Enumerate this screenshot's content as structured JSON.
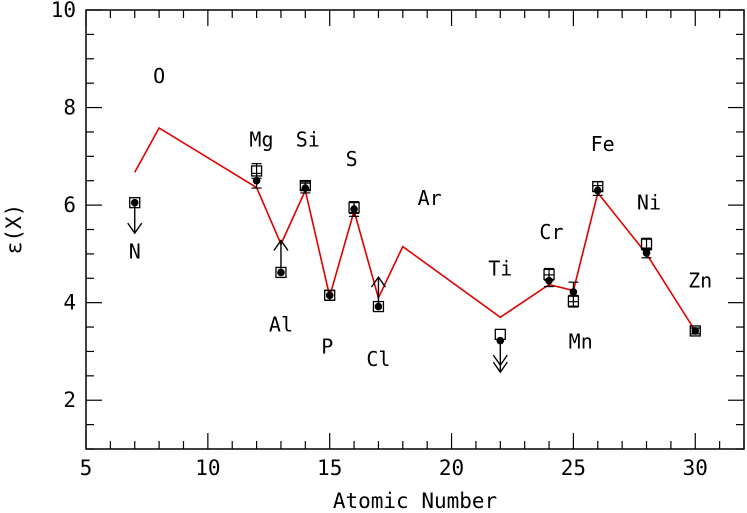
{
  "chart_data": {
    "type": "scatter",
    "xlabel": "Atomic Number",
    "ylabel": "ε(X)",
    "xlim": [
      5,
      32
    ],
    "ylim": [
      1,
      10
    ],
    "x_ticks": [
      5,
      10,
      15,
      20,
      25,
      30
    ],
    "y_ticks": [
      2,
      4,
      6,
      8,
      10
    ],
    "grid": false,
    "colors": {
      "model_line": "#e00000",
      "points": "#000000"
    },
    "series": [
      {
        "type": "line",
        "points": [
          {
            "x": 7,
            "y": 6.67
          },
          {
            "x": 8,
            "y": 7.58
          },
          {
            "x": 12,
            "y": 6.36
          },
          {
            "x": 13,
            "y": 5.2
          },
          {
            "x": 14,
            "y": 6.3
          },
          {
            "x": 15,
            "y": 4.13
          },
          {
            "x": 16,
            "y": 5.88
          },
          {
            "x": 17,
            "y": 4.1
          },
          {
            "x": 18,
            "y": 5.15
          },
          {
            "x": 22,
            "y": 3.7
          },
          {
            "x": 24,
            "y": 4.37
          },
          {
            "x": 25,
            "y": 4.25
          },
          {
            "x": 26,
            "y": 6.25
          },
          {
            "x": 28,
            "y": 5.0
          },
          {
            "x": 30,
            "y": 3.42
          }
        ]
      },
      {
        "type": "scatter-square",
        "points": [
          {
            "x": 7,
            "y": 6.05,
            "err": 0
          },
          {
            "x": 12,
            "y": 6.7,
            "err": 0.15
          },
          {
            "x": 13,
            "y": 4.62,
            "err": 0
          },
          {
            "x": 14,
            "y": 6.4,
            "err": 0.08
          },
          {
            "x": 15,
            "y": 4.15,
            "err": 0.1
          },
          {
            "x": 16,
            "y": 5.95,
            "err": 0.12
          },
          {
            "x": 17,
            "y": 3.92,
            "err": 0
          },
          {
            "x": 22,
            "y": 3.35,
            "err": 0
          },
          {
            "x": 24,
            "y": 4.58,
            "err": 0.12
          },
          {
            "x": 25,
            "y": 4.03,
            "err": 0.12
          },
          {
            "x": 26,
            "y": 6.38,
            "err": 0.1
          },
          {
            "x": 28,
            "y": 5.2,
            "err": 0.12
          },
          {
            "x": 30,
            "y": 3.42,
            "err": 0.06
          }
        ]
      },
      {
        "type": "scatter-dot",
        "points": [
          {
            "x": 7,
            "y": 6.05,
            "err": 0
          },
          {
            "x": 12,
            "y": 6.5,
            "err": 0.15
          },
          {
            "x": 13,
            "y": 4.62,
            "err": 0
          },
          {
            "x": 14,
            "y": 6.35,
            "err": 0.1
          },
          {
            "x": 15,
            "y": 4.15,
            "err": 0.1
          },
          {
            "x": 16,
            "y": 5.92,
            "err": 0.15
          },
          {
            "x": 17,
            "y": 3.92,
            "err": 0
          },
          {
            "x": 22,
            "y": 3.22,
            "err": 0
          },
          {
            "x": 24,
            "y": 4.45,
            "err": 0.12
          },
          {
            "x": 25,
            "y": 4.22,
            "err": 0.2
          },
          {
            "x": 26,
            "y": 6.3,
            "err": 0.1
          },
          {
            "x": 28,
            "y": 5.02,
            "err": 0.1
          },
          {
            "x": 30,
            "y": 3.42,
            "err": 0.06
          }
        ]
      }
    ],
    "limit_arrows": [
      {
        "x": 7,
        "y": 6.0,
        "direction": "down",
        "count": 1
      },
      {
        "x": 13,
        "y": 4.7,
        "direction": "up",
        "count": 1
      },
      {
        "x": 17,
        "y": 3.95,
        "direction": "up",
        "count": 1
      },
      {
        "x": 22,
        "y": 3.15,
        "direction": "down",
        "count": 2
      }
    ],
    "element_labels": [
      {
        "text": "O",
        "x": 8,
        "y": 8.65
      },
      {
        "text": "N",
        "x": 7,
        "y": 5.05
      },
      {
        "text": "Mg",
        "x": 12.2,
        "y": 7.35
      },
      {
        "text": "Si",
        "x": 14.1,
        "y": 7.35
      },
      {
        "text": "S",
        "x": 15.9,
        "y": 6.95
      },
      {
        "text": "Ar",
        "x": 19.1,
        "y": 6.15
      },
      {
        "text": "Al",
        "x": 13,
        "y": 3.55
      },
      {
        "text": "P",
        "x": 14.9,
        "y": 3.1
      },
      {
        "text": "Cl",
        "x": 17,
        "y": 2.85
      },
      {
        "text": "Ti",
        "x": 22,
        "y": 4.7
      },
      {
        "text": "Cr",
        "x": 24.1,
        "y": 5.45
      },
      {
        "text": "Mn",
        "x": 25.3,
        "y": 3.2
      },
      {
        "text": "Fe",
        "x": 26.2,
        "y": 7.25
      },
      {
        "text": "Ni",
        "x": 28.1,
        "y": 6.05
      },
      {
        "text": "Zn",
        "x": 30.2,
        "y": 4.45
      }
    ]
  }
}
